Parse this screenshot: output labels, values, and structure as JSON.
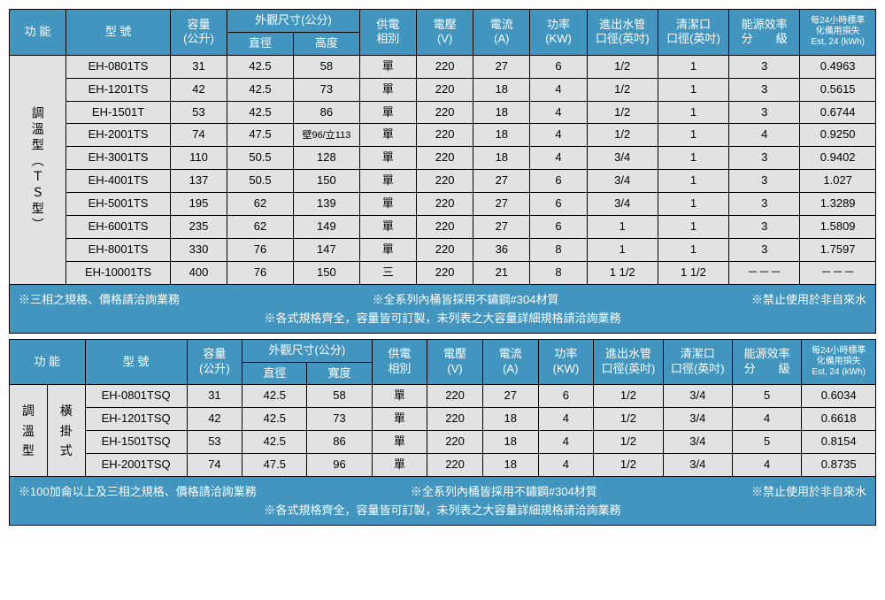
{
  "colors": {
    "header_bg": "#4195bf",
    "header_fg": "#ffffff",
    "cell_bg": "#e2e2e2",
    "border": "#000000"
  },
  "table1": {
    "headers": {
      "function": "功 能",
      "model": "型 號",
      "capacity": "容量",
      "capacity_unit": "(公升)",
      "dims": "外觀尺寸(公分)",
      "dims_diameter": "直徑",
      "dims_height": "高度",
      "power_phase": "供電\n相別",
      "voltage": "電壓\n(V)",
      "current": "電流\n(A)",
      "power": "功率\n(KW)",
      "pipe": "進出水管\n口徑(英吋)",
      "clean": "清潔口\n口徑(英吋)",
      "eff": "能源效率\n分　　級",
      "est24_l1": "每24小時標準",
      "est24_l2": "化備用損失",
      "est24_l3": "Est, 24 (kWh)"
    },
    "category": "調溫型（ＴＳ型）",
    "rows": [
      {
        "model": "EH-0801TS",
        "cap": "31",
        "dia": "42.5",
        "h": "58",
        "phase": "單",
        "v": "220",
        "a": "27",
        "kw": "6",
        "pipe": "1/2",
        "clean": "1",
        "eff": "3",
        "est": "0.4963"
      },
      {
        "model": "EH-1201TS",
        "cap": "42",
        "dia": "42.5",
        "h": "73",
        "phase": "單",
        "v": "220",
        "a": "18",
        "kw": "4",
        "pipe": "1/2",
        "clean": "1",
        "eff": "3",
        "est": "0.5615"
      },
      {
        "model": "EH-1501T",
        "cap": "53",
        "dia": "42.5",
        "h": "86",
        "phase": "單",
        "v": "220",
        "a": "18",
        "kw": "4",
        "pipe": "1/2",
        "clean": "1",
        "eff": "3",
        "est": "0.6744"
      },
      {
        "model": "EH-2001TS",
        "cap": "74",
        "dia": "47.5",
        "h": "壁96/立113",
        "phase": "單",
        "v": "220",
        "a": "18",
        "kw": "4",
        "pipe": "1/2",
        "clean": "1",
        "eff": "4",
        "est": "0.9250"
      },
      {
        "model": "EH-3001TS",
        "cap": "110",
        "dia": "50.5",
        "h": "128",
        "phase": "單",
        "v": "220",
        "a": "18",
        "kw": "4",
        "pipe": "3/4",
        "clean": "1",
        "eff": "3",
        "est": "0.9402"
      },
      {
        "model": "EH-4001TS",
        "cap": "137",
        "dia": "50.5",
        "h": "150",
        "phase": "單",
        "v": "220",
        "a": "27",
        "kw": "6",
        "pipe": "3/4",
        "clean": "1",
        "eff": "3",
        "est": "1.027"
      },
      {
        "model": "EH-5001TS",
        "cap": "195",
        "dia": "62",
        "h": "139",
        "phase": "單",
        "v": "220",
        "a": "27",
        "kw": "6",
        "pipe": "3/4",
        "clean": "1",
        "eff": "3",
        "est": "1.3289"
      },
      {
        "model": "EH-6001TS",
        "cap": "235",
        "dia": "62",
        "h": "149",
        "phase": "單",
        "v": "220",
        "a": "27",
        "kw": "6",
        "pipe": "1",
        "clean": "1",
        "eff": "3",
        "est": "1.5809"
      },
      {
        "model": "EH-8001TS",
        "cap": "330",
        "dia": "76",
        "h": "147",
        "phase": "單",
        "v": "220",
        "a": "36",
        "kw": "8",
        "pipe": "1",
        "clean": "1",
        "eff": "3",
        "est": "1.7597"
      },
      {
        "model": "EH-10001TS",
        "cap": "400",
        "dia": "76",
        "h": "150",
        "phase": "三",
        "v": "220",
        "a": "21",
        "kw": "8",
        "pipe": "1 1/2",
        "clean": "1 1/2",
        "eff": "－－－",
        "est": "－－－"
      }
    ],
    "notes": {
      "left": "※三相之規格、價格請洽詢業務",
      "center": "※全系列內桶皆採用不鏽鋼#304材質",
      "right": "※禁止使用於非自來水",
      "second": "※各式規格齊全，容量皆可訂製，未列表之大容量詳細規格請洽詢業務"
    }
  },
  "table2": {
    "headers": {
      "function": "功 能",
      "model": "型 號",
      "capacity": "容量",
      "capacity_unit": "(公升)",
      "dims": "外觀尺寸(公分)",
      "dims_diameter": "直徑",
      "dims_width": "寬度",
      "power_phase": "供電\n相別",
      "voltage": "電壓\n(V)",
      "current": "電流\n(A)",
      "power": "功率\n(KW)",
      "pipe": "進出水管\n口徑(英吋)",
      "clean": "清潔口\n口徑(英吋)",
      "eff": "能源效率\n分　　級",
      "est24_l1": "每24小時標準",
      "est24_l2": "化備用損失",
      "est24_l3": "Est, 24 (kWh)"
    },
    "category_col1": "調溫型",
    "category_col2": "橫掛式",
    "rows": [
      {
        "model": "EH-0801TSQ",
        "cap": "31",
        "dia": "42.5",
        "w": "58",
        "phase": "單",
        "v": "220",
        "a": "27",
        "kw": "6",
        "pipe": "1/2",
        "clean": "3/4",
        "eff": "5",
        "est": "0.6034"
      },
      {
        "model": "EH-1201TSQ",
        "cap": "42",
        "dia": "42.5",
        "w": "73",
        "phase": "單",
        "v": "220",
        "a": "18",
        "kw": "4",
        "pipe": "1/2",
        "clean": "3/4",
        "eff": "4",
        "est": "0.6618"
      },
      {
        "model": "EH-1501TSQ",
        "cap": "53",
        "dia": "42.5",
        "w": "86",
        "phase": "單",
        "v": "220",
        "a": "18",
        "kw": "4",
        "pipe": "1/2",
        "clean": "3/4",
        "eff": "5",
        "est": "0.8154"
      },
      {
        "model": "EH-2001TSQ",
        "cap": "74",
        "dia": "47.5",
        "w": "96",
        "phase": "單",
        "v": "220",
        "a": "18",
        "kw": "4",
        "pipe": "1/2",
        "clean": "3/4",
        "eff": "4",
        "est": "0.8735"
      }
    ],
    "notes": {
      "left": "※100加侖以上及三相之規格、價格請洽詢業務",
      "center": "※全系列內桶皆採用不鏽鋼#304材質",
      "right": "※禁止使用於非自來水",
      "second": "※各式規格齊全，容量皆可訂製，未列表之大容量詳細規格請洽詢業務"
    }
  }
}
